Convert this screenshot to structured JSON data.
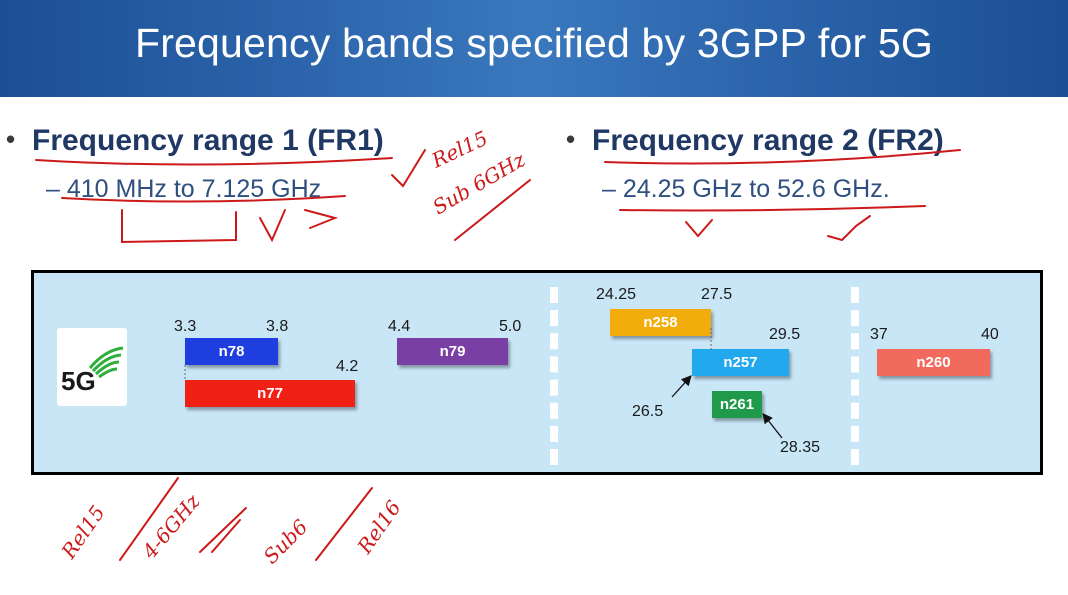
{
  "slide": {
    "title": "Frequency bands specified by 3GPP for 5G"
  },
  "fr1": {
    "bullet": "•",
    "heading": "Frequency range 1 (FR1)",
    "range": "– 410 MHz to 7.125 GHz"
  },
  "fr2": {
    "bullet": "•",
    "heading": "Frequency range 2 (FR2)",
    "range": "– 24.25 GHz to 52.6 GHz."
  },
  "diagram": {
    "logo_text": "5G",
    "bands": [
      {
        "name": "n78",
        "start": "3.3",
        "end": "3.8",
        "color": "#1f3ee0"
      },
      {
        "name": "n77",
        "end": "4.2",
        "color": "#f02015"
      },
      {
        "name": "n79",
        "start": "4.4",
        "end": "5.0",
        "color": "#7a3fa5"
      },
      {
        "name": "n258",
        "start": "24.25",
        "end": "27.5",
        "color": "#f2ad0d"
      },
      {
        "name": "n257",
        "end": "29.5",
        "start_label": "26.5",
        "color": "#22a8ec"
      },
      {
        "name": "n261",
        "end_label": "28.35",
        "color": "#1f9a4b"
      },
      {
        "name": "n260",
        "start": "37",
        "end": "40",
        "color": "#f26a5e"
      }
    ]
  },
  "annotations": {
    "color": "#cc1a1a",
    "fr1_side_top": "Rel15",
    "fr1_side_bottom": "Sub 6GHz",
    "bottom_1": "Rel15",
    "bottom_2": "4-6GHz",
    "bottom_3": "Sub6",
    "bottom_4": "Rel16"
  }
}
